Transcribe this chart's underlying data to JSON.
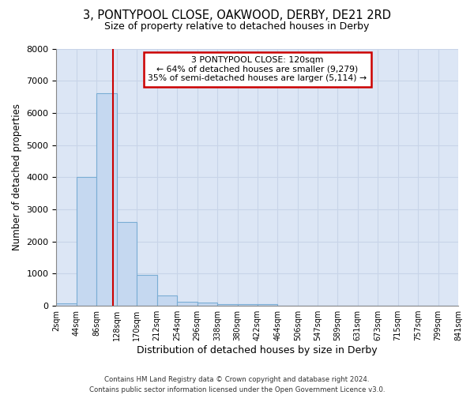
{
  "title1": "3, PONTYPOOL CLOSE, OAKWOOD, DERBY, DE21 2RD",
  "title2": "Size of property relative to detached houses in Derby",
  "xlabel": "Distribution of detached houses by size in Derby",
  "ylabel": "Number of detached properties",
  "footer1": "Contains HM Land Registry data © Crown copyright and database right 2024.",
  "footer2": "Contains public sector information licensed under the Open Government Licence v3.0.",
  "annotation_line0": "3 PONTYPOOL CLOSE: 120sqm",
  "annotation_line1": "← 64% of detached houses are smaller (9,279)",
  "annotation_line2": "35% of semi-detached houses are larger (5,114) →",
  "bin_edges": [
    2,
    44,
    86,
    128,
    170,
    212,
    254,
    296,
    338,
    380,
    422,
    464,
    506,
    547,
    589,
    631,
    673,
    715,
    757,
    799,
    841
  ],
  "bin_labels": [
    "2sqm",
    "44sqm",
    "86sqm",
    "128sqm",
    "170sqm",
    "212sqm",
    "254sqm",
    "296sqm",
    "338sqm",
    "380sqm",
    "422sqm",
    "464sqm",
    "506sqm",
    "547sqm",
    "589sqm",
    "631sqm",
    "673sqm",
    "715sqm",
    "757sqm",
    "799sqm",
    "841sqm"
  ],
  "bar_values": [
    70,
    4000,
    6600,
    2600,
    950,
    320,
    130,
    95,
    60,
    55,
    55,
    0,
    0,
    0,
    0,
    0,
    0,
    0,
    0,
    0
  ],
  "bar_color": "#c5d8f0",
  "bar_edge_color": "#7aadd4",
  "vline_x": 120,
  "vline_color": "#cc0000",
  "ylim": [
    0,
    8000
  ],
  "yticks": [
    0,
    1000,
    2000,
    3000,
    4000,
    5000,
    6000,
    7000,
    8000
  ],
  "grid_color": "#c8d4e8",
  "bg_color": "#dce6f5",
  "annotation_box_color": "#cc0000"
}
